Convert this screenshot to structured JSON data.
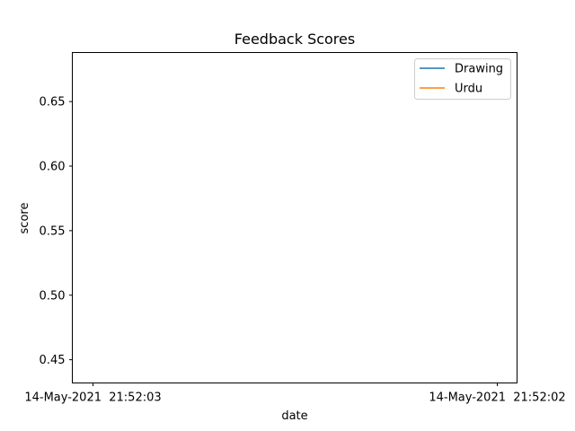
{
  "chart_data": {
    "type": "line",
    "title": "Feedback Scores",
    "xlabel": "date",
    "ylabel": "score",
    "x_ticks": [
      "14-May-2021  21:52:03",
      "14-May-2021  21:52:02"
    ],
    "y_ticks": [
      "0.45",
      "0.50",
      "0.55",
      "0.60",
      "0.65"
    ],
    "y_tick_values": [
      0.45,
      0.5,
      0.55,
      0.6,
      0.65
    ],
    "ylim": [
      0.432,
      0.688
    ],
    "grid": false,
    "legend_position": "top-right",
    "series": [
      {
        "name": "Drawing",
        "color": "#1f77b4",
        "values": []
      },
      {
        "name": "Urdu",
        "color": "#ff7f0e",
        "values": []
      }
    ]
  }
}
